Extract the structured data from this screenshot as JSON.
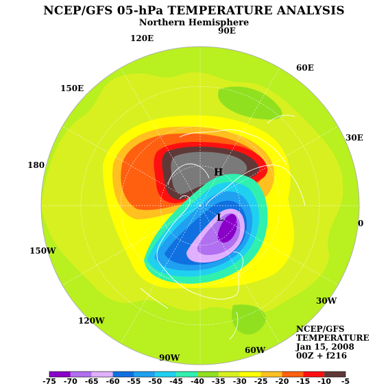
{
  "header": {
    "title": "NCEP/GFS 05-hPa TEMPERATURE ANALYSIS",
    "subtitle": "Northern Hemisphere"
  },
  "map": {
    "projection": "north-polar-stereographic",
    "longitude_labels": [
      "90E",
      "60E",
      "30E",
      "0",
      "30W",
      "60W",
      "90W",
      "120W",
      "150W",
      "180",
      "150E",
      "120E"
    ],
    "high_marker": "H",
    "low_marker": "L",
    "ocean_color": "#b8f020",
    "coastline_color": "#ffffff"
  },
  "info": {
    "line1": "NCEP/GFS",
    "line2": "TEMPERATURE",
    "line3": "Jan 15, 2008",
    "line4": "00Z + f216"
  },
  "colorbar": {
    "labels": [
      "-75",
      "-70",
      "-65",
      "-60",
      "-55",
      "-50",
      "-45",
      "-40",
      "-35",
      "-30",
      "-25",
      "-20",
      "-15",
      "-10",
      "-5"
    ],
    "colors": [
      "#8a00c8",
      "#b070f0",
      "#e0b0ff",
      "#1070e0",
      "#20a0f0",
      "#20d0f0",
      "#30f0b0",
      "#90e020",
      "#d8f020",
      "#ffff00",
      "#ffc020",
      "#ff6010",
      "#ff1010",
      "#603838"
    ]
  }
}
